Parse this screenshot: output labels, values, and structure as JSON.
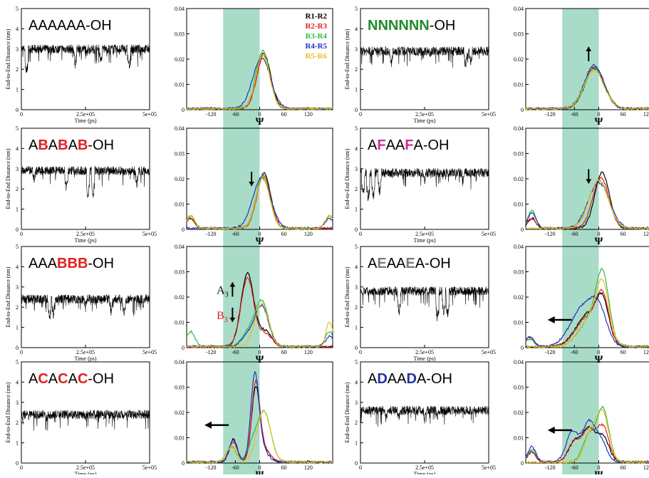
{
  "colors": {
    "band": "#a9dcc8",
    "pair_colors": [
      "#000000",
      "#e02020",
      "#33bb44",
      "#2233bb",
      "#e8c020"
    ],
    "residue_colors": {
      "A": "#000000",
      "B": "#e02020",
      "C": "#e02020",
      "N": "#1f8a2c",
      "F": "#d42a8c",
      "E": "#7a7a7a",
      "D": "#2233aa",
      "-OH": "#000000"
    },
    "trace": "#000000",
    "arrow": "#000000"
  },
  "axes": {
    "trace_ylabel": "End-to-End Distance (nm)",
    "trace_xlabel": "Time (ps)",
    "trace_xticks": [
      "0",
      "2.5e+05",
      "5e+05"
    ],
    "trace_yticks": [
      "0",
      "1",
      "2",
      "3",
      "4",
      "5"
    ],
    "dist_xlabel": "Ψ",
    "dist_xticks": [
      "-120",
      "-60",
      "0",
      "60",
      "120"
    ],
    "dist_yticks": [
      "0",
      "0.01",
      "0.02",
      "0.03",
      "0.04"
    ],
    "band_range": [
      -90,
      0
    ]
  },
  "legend": [
    "R1-R2",
    "R2-R3",
    "R3-R4",
    "R4-R5",
    "R5-R6"
  ],
  "chart_data": [
    {
      "type": "line",
      "sequence": [
        [
          "A",
          "A",
          "A",
          "A",
          "A",
          "A"
        ],
        "-OH"
      ],
      "trace_mean": 3.0,
      "dips": [
        [
          0.04,
          1.6
        ],
        [
          0.42,
          2.0
        ],
        [
          0.62,
          2.1
        ],
        [
          0.84,
          1.9
        ]
      ],
      "series": [
        {
          "name": "R1-R2",
          "peaks": [
            [
              10,
              0.022,
              17
            ]
          ]
        },
        {
          "name": "R2-R3",
          "peaks": [
            [
              10,
              0.021,
              17
            ]
          ]
        },
        {
          "name": "R3-R4",
          "peaks": [
            [
              8,
              0.023,
              17
            ]
          ]
        },
        {
          "name": "R4-R5",
          "peaks": [
            [
              5,
              0.02,
              22
            ]
          ]
        },
        {
          "name": "R5-R6",
          "peaks": [
            [
              8,
              0.021,
              17
            ]
          ]
        }
      ],
      "annotation": null
    },
    {
      "type": "line",
      "sequence": [
        [
          "N",
          "N",
          "N",
          "N",
          "N",
          "N"
        ],
        "-OH"
      ],
      "trace_mean": 2.9,
      "dips": [
        [
          0.24,
          2.0
        ],
        [
          0.82,
          1.9
        ],
        [
          0.86,
          2.1
        ]
      ],
      "series": [
        {
          "name": "R1-R2",
          "peaks": [
            [
              -10,
              0.016,
              24
            ]
          ]
        },
        {
          "name": "R2-R3",
          "peaks": [
            [
              -10,
              0.0165,
              24
            ]
          ]
        },
        {
          "name": "R3-R4",
          "peaks": [
            [
              -10,
              0.016,
              24
            ]
          ]
        },
        {
          "name": "R4-R5",
          "peaks": [
            [
              -12,
              0.017,
              24
            ]
          ]
        },
        {
          "name": "R5-R6",
          "peaks": [
            [
              -12,
              0.015,
              25
            ],
            [
              175,
              0.006,
              8
            ]
          ]
        }
      ],
      "annotation": {
        "arrow": "up",
        "x": -25,
        "y": 0.022
      }
    },
    {
      "type": "line",
      "sequence": [
        [
          "A",
          "B",
          "A",
          "B",
          "A",
          "B"
        ],
        "-OH"
      ],
      "trace_mean": 2.9,
      "dips": [
        [
          0.1,
          2.2
        ],
        [
          0.35,
          1.8
        ],
        [
          0.52,
          1.4
        ],
        [
          0.56,
          1.5
        ],
        [
          0.9,
          2.0
        ]
      ],
      "series": [
        {
          "name": "R1-R2",
          "peaks": [
            [
              10,
              0.022,
              17
            ],
            [
              -170,
              0.004,
              10
            ]
          ]
        },
        {
          "name": "R2-R3",
          "peaks": [
            [
              10,
              0.021,
              17
            ],
            [
              -170,
              0.004,
              10
            ]
          ]
        },
        {
          "name": "R3-R4",
          "peaks": [
            [
              8,
              0.021,
              17
            ],
            [
              -170,
              0.005,
              10
            ],
            [
              172,
              0.005,
              10
            ]
          ]
        },
        {
          "name": "R4-R5",
          "peaks": [
            [
              5,
              0.02,
              22
            ],
            [
              172,
              0.004,
              10
            ]
          ]
        },
        {
          "name": "R5-R6",
          "peaks": [
            [
              8,
              0.02,
              17
            ],
            [
              -170,
              0.005,
              10
            ],
            [
              172,
              0.005,
              10
            ]
          ]
        }
      ],
      "annotation": {
        "arrow": "down",
        "x": -20,
        "y": 0.02
      }
    },
    {
      "type": "line",
      "sequence": [
        [
          "A",
          "F",
          "A",
          "A",
          "F",
          "A"
        ],
        "-OH"
      ],
      "trace_mean": 2.8,
      "dips": [
        [
          0.02,
          1.5
        ],
        [
          0.06,
          1.3
        ],
        [
          0.1,
          1.4
        ],
        [
          0.15,
          1.6
        ],
        [
          0.5,
          2.1
        ],
        [
          0.8,
          2.2
        ]
      ],
      "series": [
        {
          "name": "R1-R2",
          "peaks": [
            [
              8,
              0.022,
              18
            ],
            [
              -165,
              0.004,
              10
            ]
          ]
        },
        {
          "name": "R2-R3",
          "peaks": [
            [
              5,
              0.02,
              20
            ],
            [
              -165,
              0.004,
              10
            ]
          ]
        },
        {
          "name": "R3-R4",
          "peaks": [
            [
              0,
              0.019,
              24
            ],
            [
              -165,
              0.007,
              10
            ],
            [
              172,
              0.005,
              10
            ]
          ]
        },
        {
          "name": "R4-R5",
          "peaks": [
            [
              0,
              0.018,
              26
            ],
            [
              -165,
              0.006,
              10
            ]
          ]
        },
        {
          "name": "R5-R6",
          "peaks": [
            [
              0,
              0.019,
              24
            ],
            [
              172,
              0.005,
              10
            ]
          ]
        }
      ],
      "annotation": {
        "arrow": "down",
        "x": -25,
        "y": 0.021
      }
    },
    {
      "type": "line",
      "sequence": [
        [
          "A",
          "A",
          "A",
          "B",
          "B",
          "B"
        ],
        "-OH"
      ],
      "trace_mean": 2.4,
      "dips": [
        [
          0.22,
          1.2
        ],
        [
          0.25,
          1.4
        ],
        [
          0.5,
          1.7
        ],
        [
          0.7,
          1.5
        ],
        [
          0.8,
          1.4
        ],
        [
          0.95,
          1.8
        ]
      ],
      "series": [
        {
          "name": "R1-R2",
          "peaks": [
            [
              -30,
              0.029,
              16
            ],
            [
              15,
              0.006,
              15
            ]
          ]
        },
        {
          "name": "R2-R3",
          "peaks": [
            [
              -30,
              0.027,
              16
            ],
            [
              15,
              0.005,
              15
            ]
          ]
        },
        {
          "name": "R3-R4",
          "peaks": [
            [
              5,
              0.018,
              17
            ],
            [
              -30,
              0.005,
              15
            ],
            [
              -170,
              0.006,
              10
            ],
            [
              172,
              0.006,
              10
            ]
          ]
        },
        {
          "name": "R4-R5",
          "peaks": [
            [
              5,
              0.016,
              17
            ],
            [
              -30,
              0.004,
              15
            ],
            [
              172,
              0.004,
              10
            ]
          ]
        },
        {
          "name": "R5-R6",
          "peaks": [
            [
              5,
              0.017,
              17
            ],
            [
              172,
              0.01,
              8
            ]
          ]
        }
      ],
      "annotation": {
        "labels": [
          {
            "text": "A",
            "sub": "3",
            "color": "#000000",
            "arrow": "up",
            "x": -85,
            "y": 0.023
          },
          {
            "text": "B",
            "sub": "3",
            "color": "#e02020",
            "arrow": "down",
            "x": -85,
            "y": 0.013
          }
        ]
      }
    },
    {
      "type": "line",
      "sequence": [
        [
          "A",
          "E",
          "A",
          "A",
          "E",
          "A"
        ],
        "-OH"
      ],
      "trace_mean": 2.8,
      "dips": [
        [
          0.3,
          1.5
        ],
        [
          0.6,
          1.2
        ],
        [
          0.65,
          1.5
        ],
        [
          0.68,
          1.4
        ]
      ],
      "series": [
        {
          "name": "R1-R2",
          "peaks": [
            [
              -25,
              0.013,
              30
            ],
            [
              10,
              0.014,
              15
            ]
          ]
        },
        {
          "name": "R2-R3",
          "peaks": [
            [
              -25,
              0.012,
              30
            ],
            [
              10,
              0.016,
              15
            ],
            [
              -170,
              0.004,
              10
            ]
          ]
        },
        {
          "name": "R3-R4",
          "peaks": [
            [
              -15,
              0.012,
              30
            ],
            [
              10,
              0.022,
              15
            ],
            [
              -170,
              0.003,
              10
            ]
          ]
        },
        {
          "name": "R4-R5",
          "peaks": [
            [
              -40,
              0.015,
              30
            ],
            [
              0,
              0.012,
              20
            ],
            [
              -170,
              0.004,
              10
            ]
          ]
        },
        {
          "name": "R5-R6",
          "peaks": [
            [
              -15,
              0.012,
              30
            ],
            [
              10,
              0.018,
              15
            ]
          ]
        }
      ],
      "annotation": {
        "arrow": "left",
        "x": -105,
        "y": 0.011
      }
    },
    {
      "type": "line",
      "sequence": [
        [
          "A",
          "C",
          "A",
          "C",
          "A",
          "C"
        ],
        "-OH"
      ],
      "trace_mean": 2.4,
      "dips": [
        [
          0.2,
          2.0
        ],
        [
          0.5,
          2.0
        ],
        [
          0.8,
          2.0
        ]
      ],
      "series": [
        {
          "name": "R1-R2",
          "peaks": [
            [
              -65,
              0.009,
              10
            ],
            [
              -10,
              0.028,
              10
            ],
            [
              10,
              0.005,
              15
            ]
          ]
        },
        {
          "name": "R2-R3",
          "peaks": [
            [
              -65,
              0.008,
              10
            ],
            [
              -10,
              0.03,
              10
            ],
            [
              10,
              0.005,
              15
            ]
          ]
        },
        {
          "name": "R3-R4",
          "peaks": [
            [
              -70,
              0.006,
              12
            ],
            [
              10,
              0.02,
              17
            ],
            [
              -20,
              0.005,
              12
            ]
          ]
        },
        {
          "name": "R4-R5",
          "peaks": [
            [
              -65,
              0.009,
              10
            ],
            [
              -12,
              0.033,
              10
            ],
            [
              5,
              0.005,
              15
            ]
          ]
        },
        {
          "name": "R5-R6",
          "peaks": [
            [
              -70,
              0.006,
              12
            ],
            [
              10,
              0.02,
              17
            ]
          ]
        }
      ],
      "annotation": {
        "arrow": "left",
        "x": -115,
        "y": 0.015
      }
    },
    {
      "type": "line",
      "sequence": [
        [
          "A",
          "D",
          "A",
          "A",
          "D",
          "A"
        ],
        "-OH"
      ],
      "trace_mean": 2.6,
      "dips": [
        [
          0.2,
          1.9
        ],
        [
          0.3,
          2.0
        ],
        [
          0.5,
          1.9
        ],
        [
          0.6,
          2.0
        ],
        [
          0.9,
          2.2
        ]
      ],
      "series": [
        {
          "name": "R1-R2",
          "peaks": [
            [
              -60,
              0.008,
              15
            ],
            [
              -25,
              0.013,
              15
            ],
            [
              10,
              0.01,
              15
            ],
            [
              -165,
              0.004,
              10
            ]
          ]
        },
        {
          "name": "R2-R3",
          "peaks": [
            [
              -60,
              0.008,
              15
            ],
            [
              -25,
              0.012,
              15
            ],
            [
              10,
              0.014,
              15
            ],
            [
              -165,
              0.004,
              10
            ]
          ]
        },
        {
          "name": "R3-R4",
          "peaks": [
            [
              -25,
              0.01,
              15
            ],
            [
              10,
              0.021,
              15
            ],
            [
              -165,
              0.005,
              10
            ]
          ]
        },
        {
          "name": "R4-R5",
          "peaks": [
            [
              -65,
              0.012,
              15
            ],
            [
              -25,
              0.015,
              15
            ],
            [
              5,
              0.008,
              15
            ],
            [
              -165,
              0.006,
              10
            ]
          ]
        },
        {
          "name": "R5-R6",
          "peaks": [
            [
              -20,
              0.011,
              15
            ],
            [
              10,
              0.019,
              15
            ]
          ]
        }
      ],
      "annotation": {
        "arrow": "left",
        "x": -105,
        "y": 0.013
      }
    }
  ]
}
